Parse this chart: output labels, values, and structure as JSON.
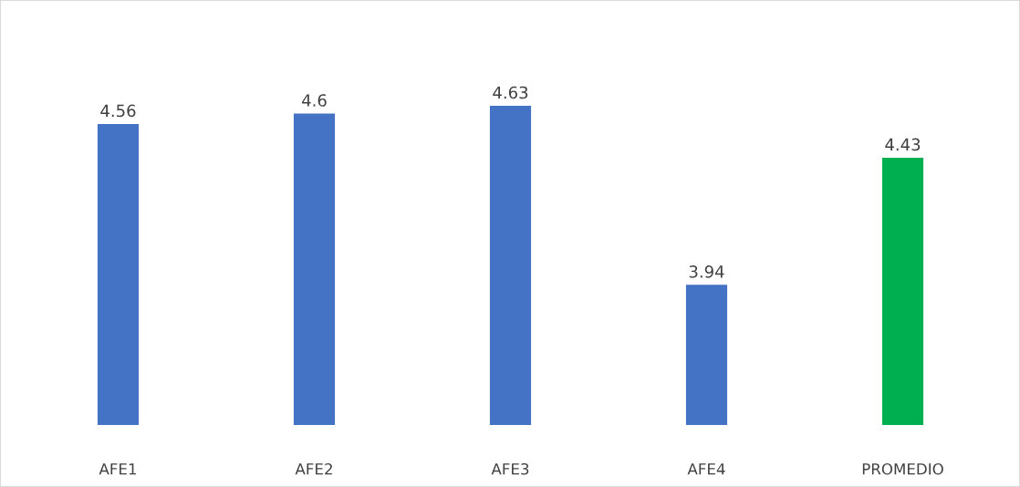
{
  "chart_data": {
    "type": "bar",
    "categories": [
      "AFE1",
      "AFE2",
      "AFE3",
      "AFE4",
      "PROMEDIO"
    ],
    "values": [
      4.56,
      4.6,
      4.63,
      3.94,
      4.43
    ],
    "colors": [
      "#4472c4",
      "#4472c4",
      "#4472c4",
      "#4472c4",
      "#00b050"
    ],
    "ylim": [
      3.4,
      4.63
    ],
    "tick_labels": "x",
    "data_labels": true,
    "grid": false,
    "legend": false
  }
}
